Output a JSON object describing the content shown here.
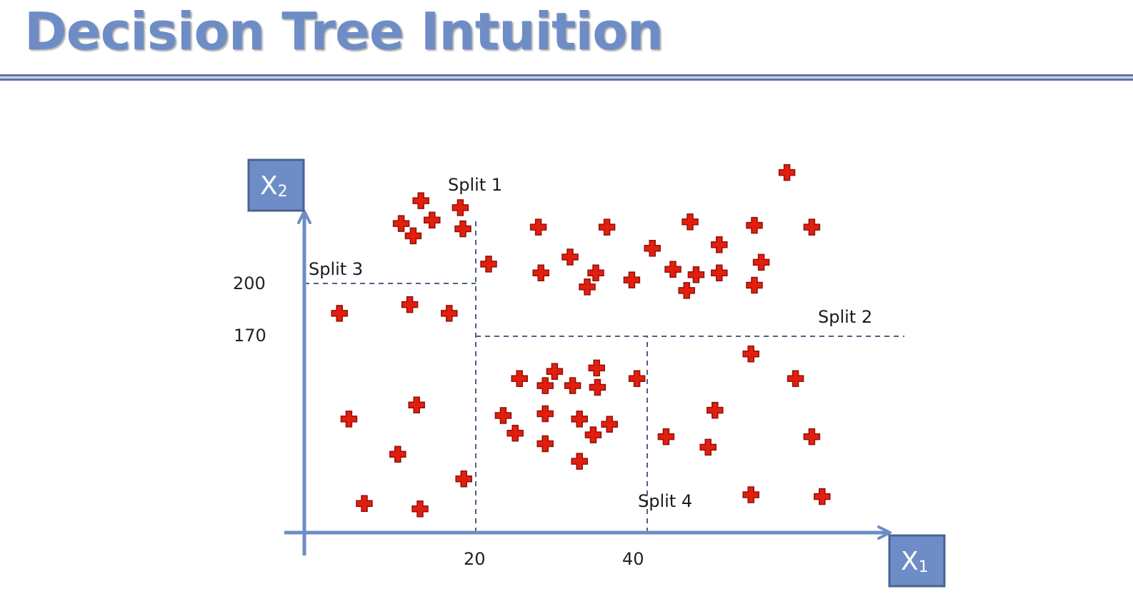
{
  "title": "Decision Tree Intuition",
  "colors": {
    "title": "#6e8dc6",
    "axis": "#6e8dc6",
    "axis_box": "#6e8dc6",
    "axis_box_border": "#4a6290",
    "split_line": "#4d5f86",
    "point": "#e41e0f",
    "point_border": "#8e1208"
  },
  "x_axis": {
    "label": "X",
    "subscript": "1",
    "ticks": [
      "20",
      "40"
    ]
  },
  "y_axis": {
    "label": "X",
    "subscript": "2",
    "ticks": [
      "200",
      "170"
    ]
  },
  "splits": [
    {
      "label": "Split 1",
      "orientation": "vertical",
      "x": 20,
      "y_from": 0,
      "y_to": 237
    },
    {
      "label": "Split 2",
      "orientation": "horizontal",
      "y": 170,
      "x_from": 20,
      "x_to": 70
    },
    {
      "label": "Split 3",
      "orientation": "horizontal",
      "y": 200,
      "x_from": 0,
      "x_to": 20
    },
    {
      "label": "Split 4",
      "orientation": "vertical",
      "x": 40,
      "y_from": 0,
      "y_to": 170
    }
  ],
  "chart_data": {
    "type": "scatter",
    "marker": "cross",
    "x_ticks": [
      20,
      40
    ],
    "y_ticks": [
      170,
      200
    ],
    "points": [
      [
        13.6,
        247.0
      ],
      [
        18.2,
        243.0
      ],
      [
        11.3,
        234.0
      ],
      [
        14.9,
        236.0
      ],
      [
        18.5,
        231.0
      ],
      [
        12.7,
        227.0
      ],
      [
        27.3,
        232.0
      ],
      [
        35.3,
        232.0
      ],
      [
        45.0,
        235.0
      ],
      [
        52.5,
        233.0
      ],
      [
        56.3,
        263.0
      ],
      [
        59.2,
        232.0
      ],
      [
        48.4,
        222.0
      ],
      [
        40.6,
        220.0
      ],
      [
        31.0,
        215.0
      ],
      [
        21.5,
        211.0
      ],
      [
        53.3,
        212.0
      ],
      [
        43.0,
        208.0
      ],
      [
        48.4,
        206.0
      ],
      [
        45.7,
        205.0
      ],
      [
        34.0,
        206.0
      ],
      [
        27.6,
        206.0
      ],
      [
        38.2,
        202.0
      ],
      [
        33.0,
        198.0
      ],
      [
        52.5,
        199.0
      ],
      [
        44.6,
        196.0
      ],
      [
        12.3,
        188.0
      ],
      [
        16.9,
        183.0
      ],
      [
        4.1,
        183.0
      ],
      [
        25.1,
        146.0
      ],
      [
        29.2,
        150.0
      ],
      [
        34.1,
        152.0
      ],
      [
        38.8,
        146.0
      ],
      [
        52.1,
        160.0
      ],
      [
        57.3,
        146.0
      ],
      [
        28.1,
        142.0
      ],
      [
        31.3,
        142.0
      ],
      [
        34.2,
        141.0
      ],
      [
        13.1,
        131.0
      ],
      [
        47.9,
        128.0
      ],
      [
        23.2,
        125.0
      ],
      [
        28.1,
        126.0
      ],
      [
        32.1,
        123.0
      ],
      [
        35.6,
        120.0
      ],
      [
        5.2,
        123.0
      ],
      [
        24.6,
        115.0
      ],
      [
        33.7,
        114.0
      ],
      [
        42.2,
        113.0
      ],
      [
        59.2,
        113.0
      ],
      [
        28.1,
        109.0
      ],
      [
        47.1,
        107.0
      ],
      [
        10.9,
        103.0
      ],
      [
        32.1,
        99.0
      ],
      [
        18.6,
        89.0
      ],
      [
        52.1,
        80.0
      ],
      [
        60.4,
        79.0
      ],
      [
        7.0,
        75.0
      ],
      [
        13.5,
        72.0
      ]
    ]
  }
}
